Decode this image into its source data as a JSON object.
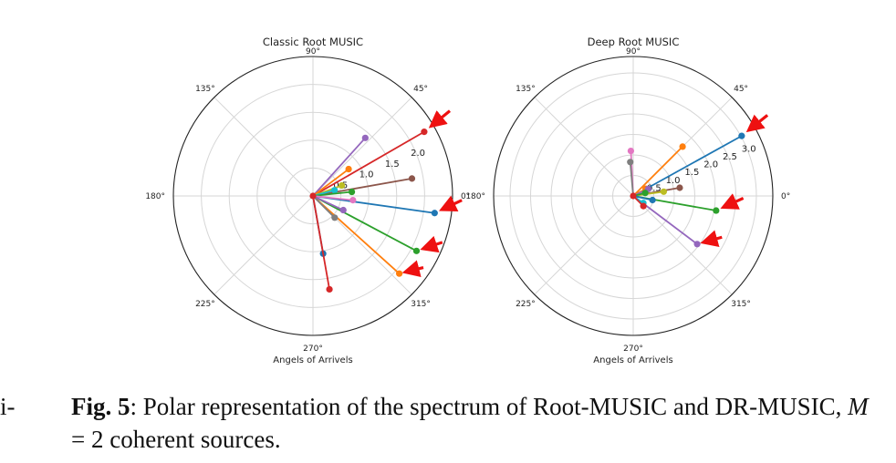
{
  "chart_data": [
    {
      "type": "polar",
      "title": "Classic Root MUSIC",
      "xlabel": "Angels of Arrivels",
      "angle_ticks": [
        "0°",
        "45°",
        "90°",
        "135°",
        "180°",
        "225°",
        "270°",
        "315°"
      ],
      "r_ticks": [
        "0.5",
        "1.0",
        "1.5",
        "2.0"
      ],
      "rlim": [
        0,
        2.5
      ],
      "grid": true,
      "series": [
        {
          "color": "#d62728",
          "theta_deg": 30,
          "r": 2.3,
          "highlighted": true
        },
        {
          "color": "#9467bd",
          "theta_deg": 48,
          "r": 1.4
        },
        {
          "color": "#ff7f0e",
          "theta_deg": 37,
          "r": 0.8
        },
        {
          "color": "#8c564b",
          "theta_deg": 10,
          "r": 1.8
        },
        {
          "color": "#bcbd22",
          "theta_deg": 20,
          "r": 0.55
        },
        {
          "color": "#17becf",
          "theta_deg": 15,
          "r": 0.4
        },
        {
          "color": "#2ca02c",
          "theta_deg": 6,
          "r": 0.7
        },
        {
          "color": "#1f77b4",
          "theta_deg": -8,
          "r": 2.2,
          "highlighted": true
        },
        {
          "color": "#e377c2",
          "theta_deg": -6,
          "r": 0.72
        },
        {
          "color": "#2ca02c",
          "theta_deg": -28,
          "r": 2.1,
          "highlighted": true
        },
        {
          "color": "#ff7f0e",
          "theta_deg": -42,
          "r": 2.08,
          "highlighted": true
        },
        {
          "color": "#9467bd",
          "theta_deg": -25,
          "r": 0.6
        },
        {
          "color": "#7f7f7f",
          "theta_deg": -45,
          "r": 0.55
        },
        {
          "color": "#1f77b4",
          "theta_deg": -80,
          "r": 1.05
        },
        {
          "color": "#d62728",
          "theta_deg": -80,
          "r": 1.7
        }
      ]
    },
    {
      "type": "polar",
      "title": "Deep Root MUSIC",
      "xlabel": "Angels of Arrivels",
      "angle_ticks": [
        "0°",
        "45°",
        "90°",
        "135°",
        "180°",
        "225°",
        "270°",
        "315°"
      ],
      "r_ticks": [
        "0.5",
        "1.0",
        "1.5",
        "2.0",
        "2.5",
        "3.0"
      ],
      "rlim": [
        0,
        3.4
      ],
      "grid": true,
      "series": [
        {
          "color": "#1f77b4",
          "theta_deg": 29,
          "r": 3.02,
          "highlighted": true
        },
        {
          "color": "#ff7f0e",
          "theta_deg": 45,
          "r": 1.7
        },
        {
          "color": "#e377c2",
          "theta_deg": 93,
          "r": 1.1
        },
        {
          "color": "#7f7f7f",
          "theta_deg": 95,
          "r": 0.83
        },
        {
          "color": "#8c564b",
          "theta_deg": 10,
          "r": 1.15
        },
        {
          "color": "#bcbd22",
          "theta_deg": 8,
          "r": 0.75
        },
        {
          "color": "#ff7f0e",
          "theta_deg": 30,
          "r": 0.35
        },
        {
          "color": "#9467bd",
          "theta_deg": 25,
          "r": 0.4
        },
        {
          "color": "#2ca02c",
          "theta_deg": 14,
          "r": 0.3
        },
        {
          "color": "#2ca02c",
          "theta_deg": -10,
          "r": 2.05,
          "highlighted": true
        },
        {
          "color": "#9467bd",
          "theta_deg": -37,
          "r": 1.95,
          "highlighted": true
        },
        {
          "color": "#1f77b4",
          "theta_deg": -12,
          "r": 0.48
        },
        {
          "color": "#17becf",
          "theta_deg": -35,
          "r": 0.3
        },
        {
          "color": "#d62728",
          "theta_deg": -45,
          "r": 0.35
        }
      ]
    }
  ],
  "caption": {
    "label": "Fig. 5",
    "text_1": ": Polar representation of the spectrum of Root-MUSIC and DR-MUSIC, ",
    "math": "M",
    "text_2": " = 2 coherent sources."
  },
  "margin_fragment": "i-"
}
